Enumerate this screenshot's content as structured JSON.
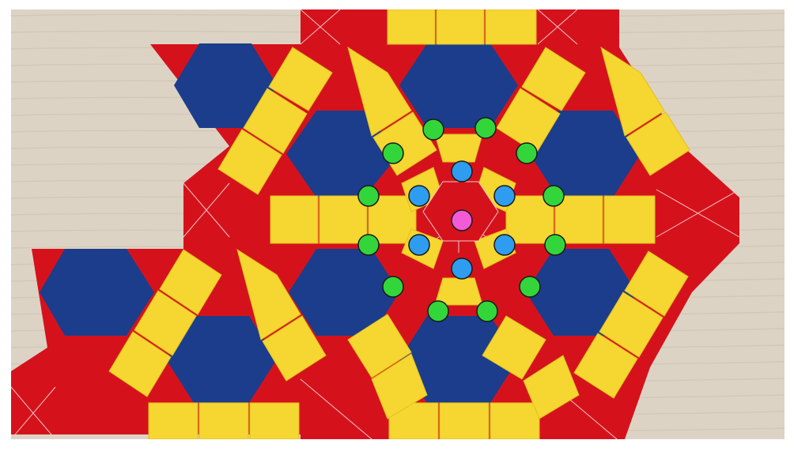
{
  "colors": {
    "wood": "#ddd3c4",
    "wood_grain": "#cfc3b1",
    "red": "#d5121c",
    "blue": "#1b3d8c",
    "yellow": "#f6d630",
    "tile_line": "#f2c6c6",
    "marker_green": "#33d63a",
    "marker_blue": "#2e9df0",
    "marker_pink": "#f25ad6",
    "marker_outline": "#1a1a1a"
  },
  "markers": {
    "center": "pink",
    "inner_ring": {
      "color": "blue",
      "count": 6
    },
    "outer_ring": {
      "color": "green",
      "count": 12
    }
  }
}
